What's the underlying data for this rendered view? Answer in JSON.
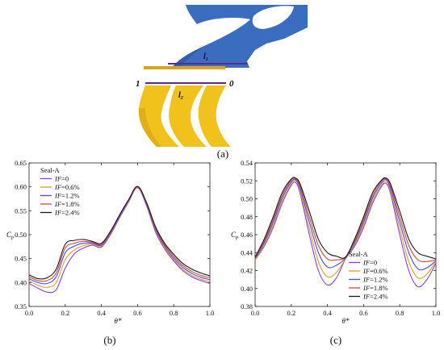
{
  "figure": {
    "captions": {
      "a": "(a)",
      "b": "(b)",
      "c": "(c)"
    },
    "diagram": {
      "label_l1": "l",
      "label_l1_sub": "1",
      "label_l2": "l",
      "label_l2_sub": "2",
      "label_1": "1",
      "label_0": "0",
      "colors": {
        "rotor_blue": "#3a6cc0",
        "stator_yellow": "#f1c21b",
        "line_purple": "#5b2a8e"
      }
    }
  },
  "chart_data": [
    {
      "id": "b",
      "type": "line",
      "title": "",
      "xlabel": "θ*",
      "ylabel": "C",
      "ylabel_sub": "p",
      "xlim": [
        0.0,
        1.0
      ],
      "ylim": [
        0.35,
        0.65
      ],
      "xticks": [
        "0.0",
        "0.2",
        "0.4",
        "0.6",
        "0.8",
        "1.0"
      ],
      "yticks": [
        "0.35",
        "0.40",
        "0.45",
        "0.50",
        "0.55",
        "0.60",
        "0.65"
      ],
      "grid": false,
      "legend": {
        "title": "Seal-A",
        "placement": "top-left",
        "prefix": "IF",
        "values": [
          "=0",
          "=0.6%",
          "=1.2%",
          "=1.8%",
          "=2.4%"
        ]
      },
      "x": [
        0.0,
        0.05,
        0.1,
        0.15,
        0.2,
        0.25,
        0.3,
        0.35,
        0.4,
        0.45,
        0.5,
        0.55,
        0.6,
        0.65,
        0.7,
        0.75,
        0.8,
        0.85,
        0.9,
        0.95,
        1.0
      ],
      "series": [
        {
          "name": "IF=0",
          "color": "#8a3fe6",
          "values": [
            0.398,
            0.388,
            0.38,
            0.385,
            0.43,
            0.46,
            0.472,
            0.478,
            0.474,
            0.5,
            0.535,
            0.568,
            0.598,
            0.56,
            0.505,
            0.47,
            0.445,
            0.425,
            0.412,
            0.404,
            0.398
          ]
        },
        {
          "name": "IF=0.6%",
          "color": "#d4a12a",
          "values": [
            0.404,
            0.394,
            0.39,
            0.4,
            0.448,
            0.468,
            0.477,
            0.48,
            0.476,
            0.502,
            0.537,
            0.57,
            0.599,
            0.562,
            0.508,
            0.473,
            0.448,
            0.428,
            0.415,
            0.407,
            0.402
          ]
        },
        {
          "name": "IF=1.2%",
          "color": "#4a4af0",
          "values": [
            0.408,
            0.4,
            0.398,
            0.412,
            0.462,
            0.476,
            0.482,
            0.482,
            0.478,
            0.503,
            0.538,
            0.571,
            0.6,
            0.563,
            0.51,
            0.476,
            0.451,
            0.432,
            0.419,
            0.411,
            0.406
          ]
        },
        {
          "name": "IF=1.8%",
          "color": "#d24a3a",
          "values": [
            0.412,
            0.404,
            0.404,
            0.42,
            0.472,
            0.482,
            0.486,
            0.484,
            0.48,
            0.505,
            0.54,
            0.572,
            0.6,
            0.565,
            0.513,
            0.479,
            0.455,
            0.436,
            0.423,
            0.415,
            0.41
          ]
        },
        {
          "name": "IF=2.4%",
          "color": "#1a1a1a",
          "values": [
            0.416,
            0.408,
            0.41,
            0.428,
            0.48,
            0.488,
            0.49,
            0.486,
            0.482,
            0.507,
            0.541,
            0.573,
            0.601,
            0.567,
            0.516,
            0.482,
            0.459,
            0.44,
            0.428,
            0.42,
            0.414
          ]
        }
      ]
    },
    {
      "id": "c",
      "type": "line",
      "title": "",
      "xlabel": "θ*",
      "ylabel": "C",
      "ylabel_sub": "p",
      "xlim": [
        0.0,
        1.0
      ],
      "ylim": [
        0.38,
        0.54
      ],
      "xticks": [
        "0.0",
        "0.2",
        "0.4",
        "0.6",
        "0.8",
        "1.0"
      ],
      "yticks": [
        "0.38",
        "0.40",
        "0.42",
        "0.44",
        "0.46",
        "0.48",
        "0.50",
        "0.52",
        "0.54"
      ],
      "grid": false,
      "legend": {
        "title": "Seal-A",
        "placement": "bottom-right",
        "prefix": "IF",
        "values": [
          "=0",
          "=0.6%",
          "=1.2%",
          "=1.8%",
          "=2.4%"
        ]
      },
      "x": [
        0.0,
        0.05,
        0.1,
        0.15,
        0.2,
        0.225,
        0.25,
        0.3,
        0.35,
        0.4,
        0.45,
        0.5,
        0.55,
        0.6,
        0.65,
        0.7,
        0.725,
        0.75,
        0.8,
        0.85,
        0.9,
        0.95,
        1.0
      ],
      "series": [
        {
          "name": "IF=0",
          "color": "#8a3fe6",
          "values": [
            0.432,
            0.447,
            0.468,
            0.495,
            0.515,
            0.518,
            0.505,
            0.46,
            0.42,
            0.404,
            0.412,
            0.433,
            0.447,
            0.468,
            0.495,
            0.514,
            0.517,
            0.505,
            0.46,
            0.42,
            0.402,
            0.41,
            0.428
          ]
        },
        {
          "name": "IF=0.6%",
          "color": "#d4a12a",
          "values": [
            0.432,
            0.449,
            0.471,
            0.498,
            0.517,
            0.52,
            0.508,
            0.467,
            0.43,
            0.413,
            0.418,
            0.433,
            0.449,
            0.471,
            0.498,
            0.516,
            0.519,
            0.508,
            0.467,
            0.43,
            0.412,
            0.416,
            0.43
          ]
        },
        {
          "name": "IF=1.2%",
          "color": "#4a4af0",
          "values": [
            0.433,
            0.451,
            0.474,
            0.501,
            0.519,
            0.521,
            0.511,
            0.474,
            0.44,
            0.424,
            0.426,
            0.434,
            0.451,
            0.474,
            0.501,
            0.518,
            0.521,
            0.511,
            0.474,
            0.44,
            0.422,
            0.423,
            0.431
          ]
        },
        {
          "name": "IF=1.8%",
          "color": "#d24a3a",
          "values": [
            0.434,
            0.453,
            0.477,
            0.504,
            0.521,
            0.522,
            0.514,
            0.48,
            0.448,
            0.433,
            0.432,
            0.435,
            0.453,
            0.477,
            0.504,
            0.52,
            0.522,
            0.514,
            0.48,
            0.448,
            0.432,
            0.43,
            0.432
          ]
        },
        {
          "name": "IF=2.4%",
          "color": "#1a1a1a",
          "values": [
            0.435,
            0.455,
            0.48,
            0.507,
            0.522,
            0.523,
            0.516,
            0.486,
            0.455,
            0.44,
            0.436,
            0.435,
            0.455,
            0.48,
            0.507,
            0.521,
            0.523,
            0.516,
            0.486,
            0.455,
            0.44,
            0.436,
            0.433
          ]
        }
      ]
    }
  ]
}
